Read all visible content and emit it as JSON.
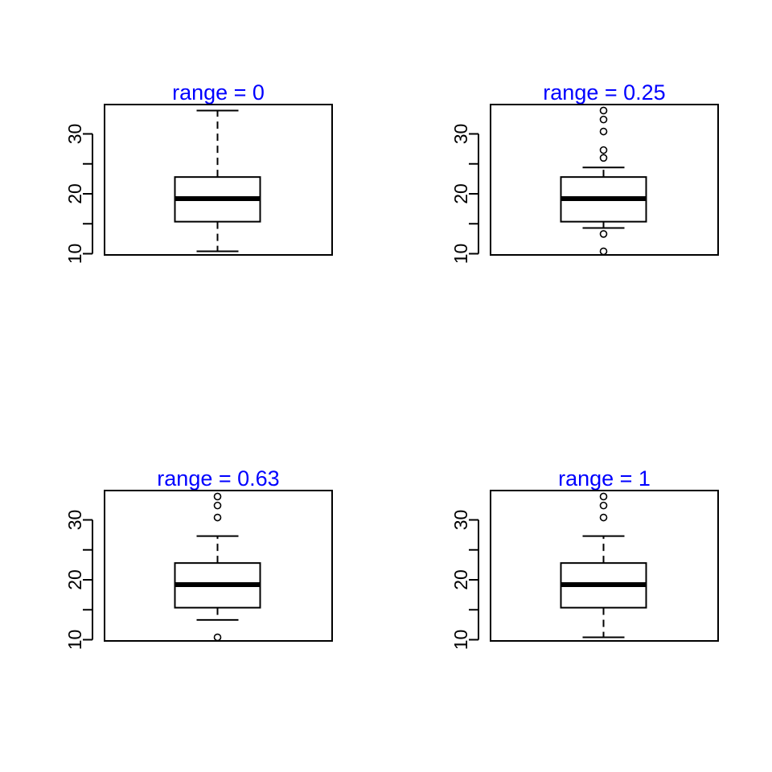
{
  "chart_data": [
    {
      "type": "box",
      "title": "range =  0",
      "xlabel": "",
      "ylabel": "",
      "ylim": [
        9.8,
        34.9
      ],
      "yticks": [
        10,
        15,
        20,
        25,
        30
      ],
      "ytick_labels": [
        "10",
        "",
        "20",
        "",
        "30"
      ],
      "box": {
        "min": 10.4,
        "q1": 15.35,
        "median": 19.2,
        "q3": 22.8,
        "max": 33.9
      },
      "whisker_style": "dashed",
      "outliers": []
    },
    {
      "type": "box",
      "title": "range =  0.25",
      "xlabel": "",
      "ylabel": "",
      "ylim": [
        9.8,
        34.9
      ],
      "yticks": [
        10,
        15,
        20,
        25,
        30
      ],
      "ytick_labels": [
        "10",
        "",
        "20",
        "",
        "30"
      ],
      "box": {
        "min": 14.3,
        "q1": 15.35,
        "median": 19.2,
        "q3": 22.8,
        "max": 24.4
      },
      "whisker_style": "dashed",
      "outliers": [
        10.4,
        13.3,
        26.0,
        27.3,
        30.4,
        32.4,
        33.9
      ]
    },
    {
      "type": "box",
      "title": "range =  0.63",
      "xlabel": "",
      "ylabel": "",
      "ylim": [
        9.8,
        34.9
      ],
      "yticks": [
        10,
        15,
        20,
        25,
        30
      ],
      "ytick_labels": [
        "10",
        "",
        "20",
        "",
        "30"
      ],
      "box": {
        "min": 13.3,
        "q1": 15.35,
        "median": 19.2,
        "q3": 22.8,
        "max": 27.3
      },
      "whisker_style": "dashed",
      "outliers": [
        10.4,
        30.4,
        32.4,
        33.9
      ]
    },
    {
      "type": "box",
      "title": "range =  1",
      "xlabel": "",
      "ylabel": "",
      "ylim": [
        9.8,
        34.9
      ],
      "yticks": [
        10,
        15,
        20,
        25,
        30
      ],
      "ytick_labels": [
        "10",
        "",
        "20",
        "",
        "30"
      ],
      "box": {
        "min": 10.4,
        "q1": 15.35,
        "median": 19.2,
        "q3": 22.8,
        "max": 27.3
      },
      "whisker_style": "dashed",
      "outliers": [
        30.4,
        32.4,
        33.9
      ]
    }
  ],
  "colors": {
    "title": "#0000ff",
    "stroke": "#000000"
  }
}
